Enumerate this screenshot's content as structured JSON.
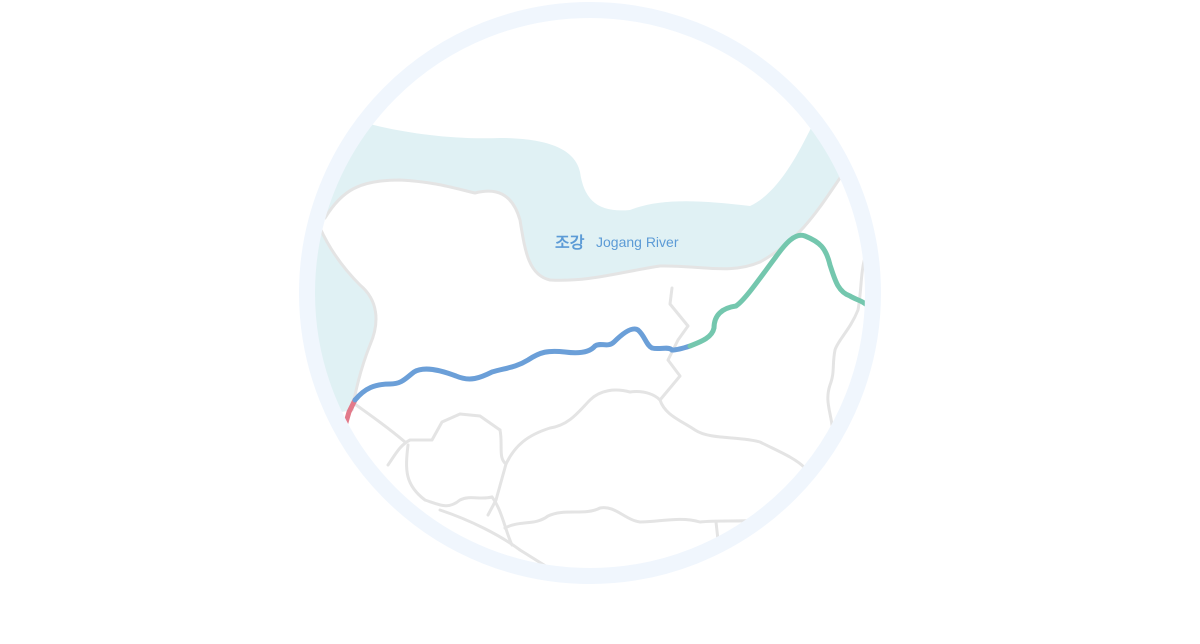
{
  "map": {
    "river": {
      "name_ko": "조강",
      "name_en": "Jogang River"
    },
    "colors": {
      "water": "#e0f1f4",
      "water_edge": "#e4e4e4",
      "road": "#e4e4e4",
      "frame_ring": "#f0f6fd",
      "label": "#5c9bd6",
      "route_blue": "#6b9fd8",
      "route_green": "#74c7ae",
      "route_red": "#e27a8a"
    },
    "route_segments": [
      {
        "color_key": "route_red"
      },
      {
        "color_key": "route_blue"
      },
      {
        "color_key": "route_green"
      }
    ]
  }
}
